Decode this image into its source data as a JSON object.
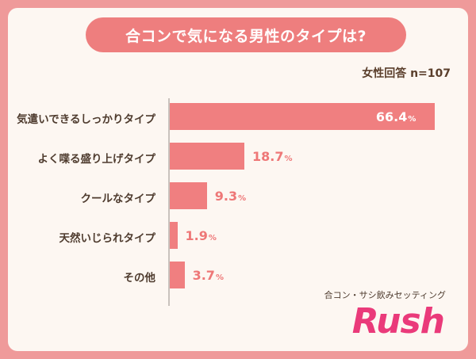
{
  "title": "合コンで気になる男性のタイプは?",
  "sample": "女性回答 n=107",
  "chart_data": {
    "type": "bar",
    "orientation": "horizontal",
    "title": "合コンで気になる男性のタイプは?",
    "categories": [
      "気遣いできるしっかりタイプ",
      "よく喋る盛り上げタイプ",
      "クールなタイプ",
      "天然いじられタイプ",
      "その他"
    ],
    "values": [
      66.4,
      18.7,
      9.3,
      1.9,
      3.7
    ],
    "value_labels": [
      "66.4",
      "18.7",
      "9.3",
      "1.9",
      "3.7"
    ],
    "unit": "%",
    "xlim": [
      0,
      70
    ],
    "grid": false,
    "bar_color": "#f07f80"
  },
  "footer": {
    "subtitle": "合コン・サシ飲みセッティング",
    "logo": "Rush"
  }
}
